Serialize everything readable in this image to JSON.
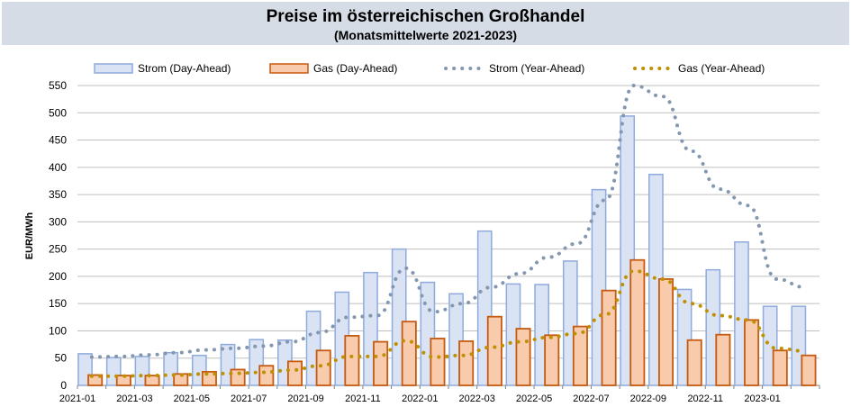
{
  "chart_data": {
    "type": "bar",
    "title": "Preise im österreichischen Großhandel",
    "subtitle": "(Monatsmittelwerte 2021-2023)",
    "ylabel": "EUR/MWh",
    "xlabel": "",
    "ylim": [
      0,
      550
    ],
    "yticks": [
      0,
      50,
      100,
      150,
      200,
      250,
      300,
      350,
      400,
      450,
      500,
      550
    ],
    "grid": true,
    "legend_position": "top",
    "categories": [
      "2021-01",
      "2021-02",
      "2021-03",
      "2021-04",
      "2021-05",
      "2021-06",
      "2021-07",
      "2021-08",
      "2021-09",
      "2021-10",
      "2021-11",
      "2021-12",
      "2022-01",
      "2022-02",
      "2022-03",
      "2022-04",
      "2022-05",
      "2022-06",
      "2022-07",
      "2022-08",
      "2022-09",
      "2022-10",
      "2022-11",
      "2022-12",
      "2023-01",
      "2023-02"
    ],
    "xtick_labels": [
      "2021-01",
      "2021-03",
      "2021-05",
      "2021-07",
      "2021-09",
      "2021-11",
      "2022-01",
      "2022-03",
      "2022-05",
      "2022-07",
      "2022-09",
      "2022-11",
      "2023-01"
    ],
    "series": [
      {
        "name": "Strom (Day-Ahead)",
        "kind": "bar",
        "fill": "#dae3f3",
        "stroke": "#8faadc",
        "values": [
          58,
          51,
          53,
          60,
          55,
          75,
          84,
          83,
          136,
          171,
          207,
          250,
          189,
          168,
          283,
          186,
          185,
          228,
          359,
          494,
          387,
          176,
          212,
          263,
          145,
          145
        ]
      },
      {
        "name": "Gas (Day-Ahead)",
        "kind": "bar",
        "fill": "#f8cbad",
        "stroke": "#c55a11",
        "values": [
          19,
          18,
          18,
          21,
          25,
          29,
          36,
          44,
          64,
          91,
          80,
          117,
          86,
          81,
          126,
          104,
          92,
          108,
          174,
          230,
          195,
          83,
          93,
          120,
          64,
          55
        ]
      },
      {
        "name": "Strom (Year-Ahead)",
        "kind": "dotted-line",
        "color": "#8497b0",
        "values": [
          52,
          53,
          56,
          60,
          65,
          68,
          72,
          80,
          97,
          125,
          128,
          215,
          135,
          150,
          180,
          205,
          235,
          260,
          340,
          550,
          530,
          430,
          360,
          330,
          195,
          180
        ]
      },
      {
        "name": "Gas (Year-Ahead)",
        "kind": "dotted-line",
        "color": "#bf9000",
        "values": [
          17,
          17,
          18,
          19,
          21,
          22,
          24,
          28,
          36,
          53,
          53,
          82,
          52,
          55,
          70,
          80,
          88,
          95,
          130,
          210,
          195,
          150,
          128,
          120,
          68,
          63
        ]
      }
    ]
  }
}
